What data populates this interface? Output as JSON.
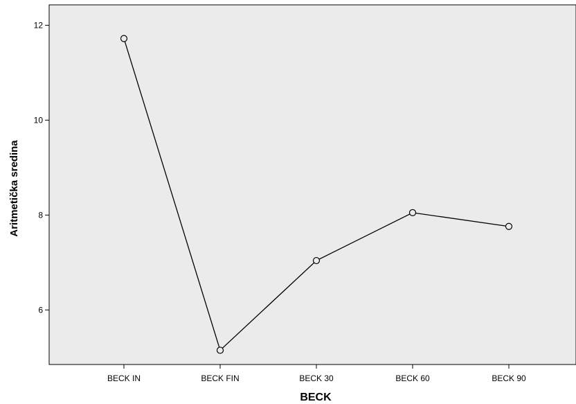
{
  "chart_data": {
    "type": "line",
    "title": "",
    "xlabel": "BECK",
    "ylabel": "Aritmetička sredina",
    "categories": [
      "BECK IN",
      "BECK FIN",
      "BECK 30",
      "BECK 60",
      "BECK 90"
    ],
    "series": [
      {
        "values": [
          11.72,
          5.15,
          7.04,
          8.05,
          7.76
        ]
      }
    ],
    "ylim": [
      4.85,
      12.43
    ],
    "yticks": [
      6,
      8,
      10,
      12
    ],
    "ytick_labels": [
      "6",
      "8",
      "10",
      "12"
    ],
    "grid": false,
    "legend": "none",
    "colors": {
      "plot_background": "#ebebeb",
      "line": "#000000",
      "marker_fill": "#ebebeb"
    }
  }
}
